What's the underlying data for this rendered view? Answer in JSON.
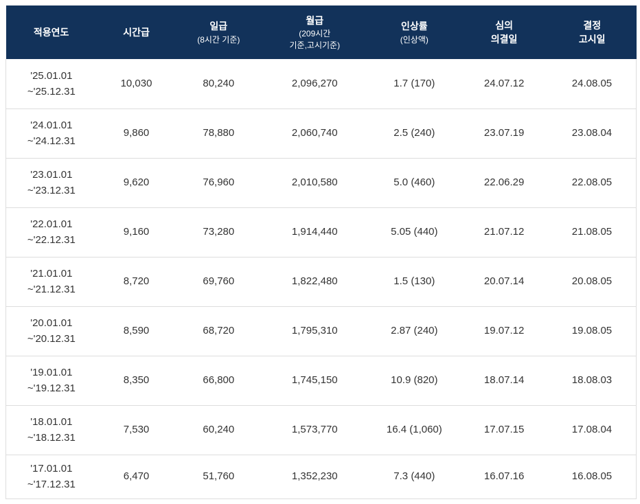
{
  "colors": {
    "header_background": "#12325a",
    "header_text": "#ffffff",
    "row_divider": "#dddddd",
    "body_text": "#333333",
    "page_background": "#ffffff"
  },
  "table": {
    "columns": [
      {
        "title": "적용연도",
        "sub": ""
      },
      {
        "title": "시간급",
        "sub": ""
      },
      {
        "title": "일급",
        "sub": "(8시간 기준)"
      },
      {
        "title": "월급",
        "sub": "(209시간\n기준,고시기준)"
      },
      {
        "title": "인상률",
        "sub": "(인상액)"
      },
      {
        "title": "심의\n의결일",
        "sub": ""
      },
      {
        "title": "결정\n고시일",
        "sub": ""
      }
    ],
    "rows": [
      {
        "cells": [
          "'25.01.01\n~'25.12.31",
          "10,030",
          "80,240",
          "2,096,270",
          "1.7 (170)",
          "24.07.12",
          "24.08.05"
        ]
      },
      {
        "cells": [
          "'24.01.01\n~'24.12.31",
          "9,860",
          "78,880",
          "2,060,740",
          "2.5 (240)",
          "23.07.19",
          "23.08.04"
        ]
      },
      {
        "cells": [
          "'23.01.01\n~'23.12.31",
          "9,620",
          "76,960",
          "2,010,580",
          "5.0 (460)",
          "22.06.29",
          "22.08.05"
        ]
      },
      {
        "cells": [
          "'22.01.01\n~'22.12.31",
          "9,160",
          "73,280",
          "1,914,440",
          "5.05 (440)",
          "21.07.12",
          "21.08.05"
        ]
      },
      {
        "cells": [
          "'21.01.01\n~'21.12.31",
          "8,720",
          "69,760",
          "1,822,480",
          "1.5 (130)",
          "20.07.14",
          "20.08.05"
        ]
      },
      {
        "cells": [
          "'20.01.01\n~'20.12.31",
          "8,590",
          "68,720",
          "1,795,310",
          "2.87 (240)",
          "19.07.12",
          "19.08.05"
        ]
      },
      {
        "cells": [
          "'19.01.01\n~'19.12.31",
          "8,350",
          "66,800",
          "1,745,150",
          "10.9 (820)",
          "18.07.14",
          "18.08.03"
        ]
      },
      {
        "cells": [
          "'18.01.01\n~'18.12.31",
          "7,530",
          "60,240",
          "1,573,770",
          "16.4 (1,060)",
          "17.07.15",
          "17.08.04"
        ]
      },
      {
        "cells": [
          "'17.01.01\n~'17.12.31",
          "6,470",
          "51,760",
          "1,352,230",
          "7.3 (440)",
          "16.07.16",
          "16.08.05"
        ]
      }
    ]
  }
}
